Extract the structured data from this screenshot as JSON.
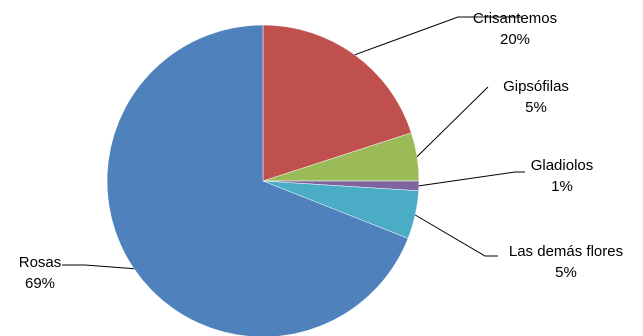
{
  "chart_data": {
    "type": "pie",
    "title": "",
    "slices": [
      {
        "name": "Crisantemos",
        "value": 20,
        "label": "20%",
        "color": "#C0504D"
      },
      {
        "name": "Gipsófilas",
        "value": 5,
        "label": "5%",
        "color": "#9BBB59"
      },
      {
        "name": "Gladiolos",
        "value": 1,
        "label": "1%",
        "color": "#8064A2"
      },
      {
        "name": "Las demás flores",
        "value": 5,
        "label": "5%",
        "color": "#4BACC6"
      },
      {
        "name": "Rosas",
        "value": 69,
        "label": "69%",
        "color": "#4F81BD"
      }
    ],
    "legend": "none",
    "labels": "outside with leader lines"
  }
}
